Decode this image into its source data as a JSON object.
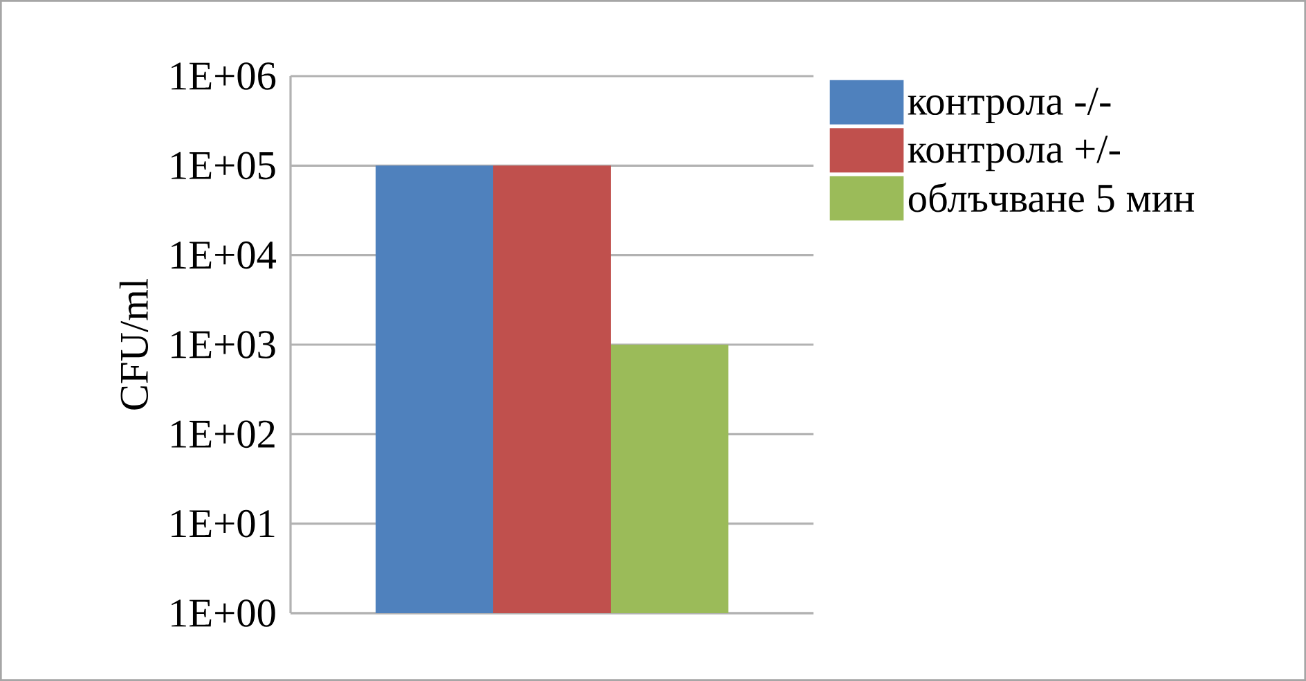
{
  "chart_data": {
    "type": "bar",
    "ylabel": "CFU/ml",
    "categories": [
      null
    ],
    "series": [
      {
        "name": "контрола -/-",
        "color": "#4f81bd",
        "values": [
          100000
        ]
      },
      {
        "name": "контрола +/-",
        "color": "#c0504d",
        "values": [
          100000
        ]
      },
      {
        "name": "облъчване 5 мин",
        "color": "#9bbb59",
        "values": [
          1000
        ]
      }
    ],
    "log": "y",
    "ylim": [
      1,
      1000000
    ],
    "yticks": [
      {
        "value": 1,
        "label": "1E+00"
      },
      {
        "value": 10,
        "label": "1E+01"
      },
      {
        "value": 100,
        "label": "1E+02"
      },
      {
        "value": 1000,
        "label": "1E+03"
      },
      {
        "value": 10000,
        "label": "1E+04"
      },
      {
        "value": 100000,
        "label": "1E+05"
      },
      {
        "value": 1000000,
        "label": "1E+06"
      }
    ],
    "grid": "y",
    "legend": "top right"
  }
}
